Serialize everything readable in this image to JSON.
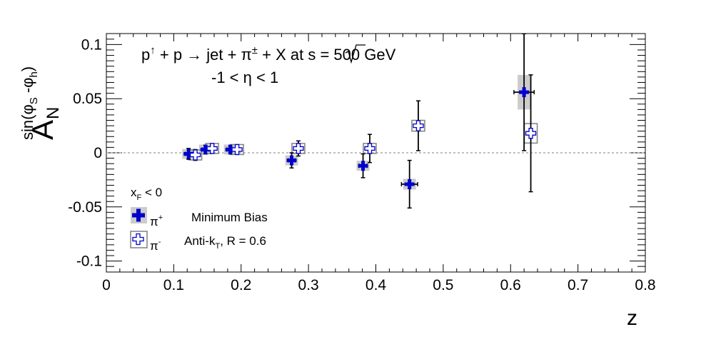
{
  "chart_data": {
    "type": "scatter",
    "annotation": {
      "reaction": {
        "lhs": "p",
        "lhs_sup": "↑",
        "rest": " + p → jet + π",
        "rest_sup": "±",
        "tail": " + X at  ",
        "sqrt": "s",
        "energy": " = 500 GeV"
      },
      "eta_range": "-1 < η < 1"
    },
    "ylabel": {
      "main": "A",
      "sub": "N",
      "sup_fn": "sin(φ",
      "sup_sub1": "S",
      "sup_mid": " -φ",
      "sup_sub2": "h",
      "sup_close": ")"
    },
    "xlabel": "z",
    "xlim": [
      0,
      0.8
    ],
    "ylim": [
      -0.11,
      0.11
    ],
    "x_ticks": [
      0,
      0.1,
      0.2,
      0.3,
      0.4,
      0.5,
      0.6,
      0.7,
      0.8
    ],
    "x_tick_labels": [
      "0",
      "0.1",
      "0.2",
      "0.3",
      "0.4",
      "0.5",
      "0.6",
      "0.7",
      "0.8"
    ],
    "y_ticks": [
      -0.1,
      -0.05,
      0,
      0.05,
      0.1
    ],
    "y_tick_labels": [
      "-0.1",
      "-0.05",
      "0",
      "0.05",
      "0.1"
    ],
    "zero_line": true,
    "legend": {
      "header_main": "x",
      "header_sub": "F",
      "header_rest": " < 0",
      "entries": [
        {
          "label": "π",
          "sup": "+",
          "desc": "Minimum Bias"
        },
        {
          "label": "π",
          "sup": "-",
          "desc_main": "Anti-k",
          "desc_sub": "T",
          "desc_rest": ", R = 0.6"
        }
      ]
    },
    "series": [
      {
        "style": "filled-cross",
        "color": "#0000cc",
        "points": [
          {
            "x": 0.122,
            "y": -0.001,
            "ey": 0.005,
            "ex": 0.005,
            "sy": 0.0015
          },
          {
            "x": 0.147,
            "y": 0.003,
            "ey": 0.004,
            "ex": 0.005,
            "sy": 0.001
          },
          {
            "x": 0.184,
            "y": 0.003,
            "ey": 0.003,
            "ex": 0.005,
            "sy": 0.001
          },
          {
            "x": 0.275,
            "y": -0.007,
            "ey": 0.007,
            "ex": 0.005,
            "sy": 0.0015
          },
          {
            "x": 0.381,
            "y": -0.012,
            "ey": 0.011,
            "ex": 0.006,
            "sy": 0.002
          },
          {
            "x": 0.45,
            "y": -0.029,
            "ey": 0.022,
            "ex": 0.012,
            "sy": 0.005
          },
          {
            "x": 0.62,
            "y": 0.056,
            "ey": 0.054,
            "ex": 0.015,
            "sy": 0.016
          }
        ]
      },
      {
        "style": "open-cross",
        "color": "#0000cc",
        "points": [
          {
            "x": 0.132,
            "y": -0.002,
            "ey": 0.005,
            "ex": 0.005,
            "sy": 0.0015
          },
          {
            "x": 0.157,
            "y": 0.004,
            "ey": 0.004,
            "ex": 0.005,
            "sy": 0.001
          },
          {
            "x": 0.194,
            "y": 0.003,
            "ey": 0.003,
            "ex": 0.005,
            "sy": 0.001
          },
          {
            "x": 0.285,
            "y": 0.004,
            "ey": 0.007,
            "ex": 0.005,
            "sy": 0.0015
          },
          {
            "x": 0.391,
            "y": 0.004,
            "ey": 0.013,
            "ex": 0.006,
            "sy": 0.002
          },
          {
            "x": 0.463,
            "y": 0.025,
            "ey": 0.023,
            "ex": 0.005,
            "sy": 0.005
          },
          {
            "x": 0.63,
            "y": 0.018,
            "ey": 0.054,
            "ex": 0.005,
            "sy": 0.009
          }
        ]
      }
    ]
  }
}
